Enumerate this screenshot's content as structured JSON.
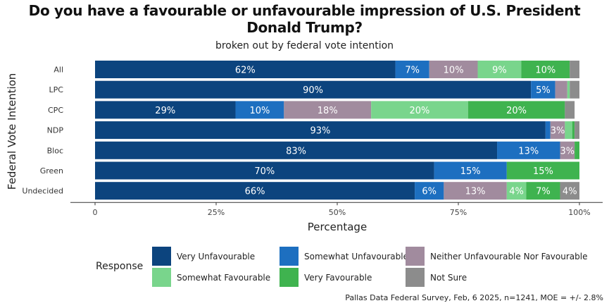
{
  "chart_data": {
    "type": "bar",
    "orientation": "horizontal",
    "stacked": true,
    "title": "Do you have a favourable or unfavourable impression of U.S. President Donald Trump?",
    "subtitle": "broken out by federal vote intention",
    "xlabel": "Percentage",
    "ylabel": "Federal Vote Intention",
    "xlim": [
      0,
      100
    ],
    "xticks": [
      "0",
      "25%",
      "50%",
      "75%",
      "100%"
    ],
    "categories": [
      "All",
      "LPC",
      "CPC",
      "NDP",
      "Bloc",
      "Green",
      "Undecided"
    ],
    "series": [
      {
        "name": "Very Unfavourable",
        "color": "#0c447e",
        "values": [
          62,
          90,
          29,
          93,
          83,
          70,
          66
        ],
        "labels": [
          "62%",
          "90%",
          "29%",
          "93%",
          "83%",
          "70%",
          "66%"
        ]
      },
      {
        "name": "Somewhat Unfavourable",
        "color": "#1d6fc0",
        "values": [
          7,
          5,
          10,
          1,
          13,
          15,
          6
        ],
        "labels": [
          "7%",
          "5%",
          "10%",
          "",
          "13%",
          "15%",
          "6%"
        ]
      },
      {
        "name": "Neither Unfavourable Nor Favourable",
        "color": "#a18b9e",
        "values": [
          10,
          2.5,
          18,
          3,
          3,
          0,
          13
        ],
        "labels": [
          "10%",
          "",
          "18%",
          "3%",
          "3%",
          "",
          "13%"
        ]
      },
      {
        "name": "Somewhat Favourable",
        "color": "#79d58c",
        "values": [
          9,
          0.5,
          20,
          1.5,
          0,
          0,
          4
        ],
        "labels": [
          "9%",
          "",
          "20%",
          "",
          "",
          "",
          "4%"
        ]
      },
      {
        "name": "Very Favourable",
        "color": "#3fb34f",
        "values": [
          10,
          0,
          20,
          0.5,
          1,
          15,
          7
        ],
        "labels": [
          "10%",
          "",
          "20%",
          "",
          "",
          "15%",
          "7%"
        ]
      },
      {
        "name": "Not Sure",
        "color": "#8c8c8c",
        "values": [
          2.5,
          2,
          2,
          2,
          0,
          0,
          4
        ],
        "labels": [
          "",
          "",
          "",
          "",
          "",
          "",
          "4%"
        ]
      }
    ],
    "legend_title": "Response",
    "legend_position": "bottom"
  },
  "caption": "Pallas Data Federal Survey, Feb, 6 2025, n=1241, MOE = +/- 2.8%"
}
